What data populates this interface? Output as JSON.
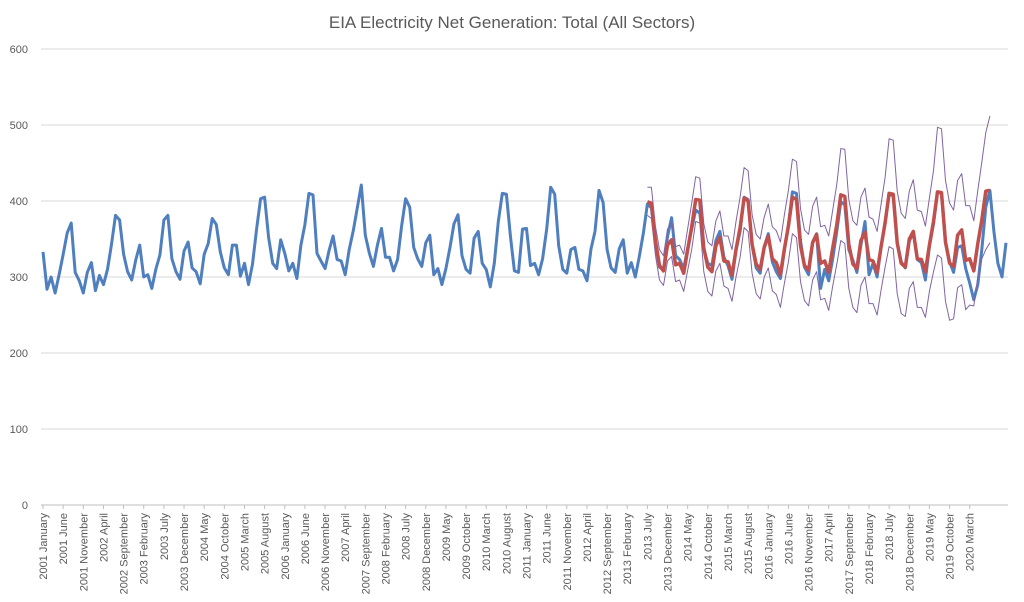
{
  "chart_data": {
    "type": "line",
    "title": "EIA Electricity Net Generation: Total (All Sectors)",
    "xlabel": "",
    "ylabel": "",
    "ylim": [
      0,
      600
    ],
    "yticks": [
      0,
      100,
      200,
      300,
      400,
      500,
      600
    ],
    "grid": true,
    "legend": "none",
    "colors": {
      "actual": "#4f7fbe",
      "forecast": "#c0504d",
      "bounds": "#8064a2",
      "grid": "#d9d9d9"
    },
    "x_start": "2001 January",
    "x_end": "2020 December",
    "x_tick_labels": [
      "2001 January",
      "2001 June",
      "2001 November",
      "2002 April",
      "2002 September",
      "2003 February",
      "2003 July",
      "2003 December",
      "2004 May",
      "2004 October",
      "2005 March",
      "2005 August",
      "2006 January",
      "2006 June",
      "2006 November",
      "2007 April",
      "2007 September",
      "2008 February",
      "2008 July",
      "2008 December",
      "2009 May",
      "2009 October",
      "2010 March",
      "2010 August",
      "2011 January",
      "2011 June",
      "2011 November",
      "2012 April",
      "2012 September",
      "2013 February",
      "2013 July",
      "2013 December",
      "2014 May",
      "2014 October",
      "2015 March",
      "2015 August",
      "2016 January",
      "2016 June",
      "2016 November",
      "2017 April",
      "2017 September",
      "2018 February",
      "2018 July",
      "2018 December",
      "2019 May",
      "2019 October",
      "2020 March"
    ],
    "series": [
      {
        "role": "actual",
        "start": "2001 January",
        "values": [
          333,
          284,
          300,
          279,
          303,
          330,
          358,
          371,
          306,
          295,
          279,
          306,
          319,
          282,
          302,
          290,
          310,
          343,
          381,
          375,
          330,
          307,
          296,
          322,
          342,
          300,
          303,
          285,
          310,
          329,
          375,
          381,
          324,
          307,
          297,
          334,
          346,
          312,
          307,
          291,
          330,
          344,
          377,
          369,
          333,
          312,
          303,
          342,
          342,
          301,
          318,
          290,
          317,
          363,
          403,
          405,
          352,
          318,
          311,
          349,
          331,
          308,
          318,
          298,
          342,
          369,
          410,
          408,
          331,
          321,
          311,
          335,
          354,
          323,
          321,
          303,
          336,
          361,
          391,
          421,
          355,
          331,
          314,
          342,
          364,
          326,
          326,
          308,
          323,
          367,
          403,
          392,
          339,
          324,
          314,
          345,
          355,
          303,
          311,
          290,
          311,
          339,
          370,
          382,
          328,
          310,
          305,
          351,
          360,
          318,
          310,
          287,
          318,
          373,
          410,
          409,
          354,
          308,
          306,
          363,
          364,
          315,
          318,
          303,
          324,
          363,
          418,
          409,
          341,
          310,
          305,
          336,
          339,
          310,
          308,
          295,
          337,
          360,
          414,
          398,
          336,
          312,
          306,
          337,
          349,
          305,
          319,
          300,
          327,
          358,
          396,
          391,
          345,
          313,
          309,
          353,
          378,
          328,
          323,
          311,
          338,
          363,
          388,
          384,
          337,
          318,
          315,
          348,
          360,
          326,
          315,
          297,
          335,
          360,
          405,
          402,
          342,
          312,
          305,
          340,
          357,
          320,
          307,
          298,
          335,
          368,
          412,
          410,
          348,
          313,
          303,
          346,
          357,
          285,
          310,
          295,
          324,
          360,
          399,
          395,
          336,
          322,
          306,
          342,
          373,
          303,
          318,
          300,
          340,
          373,
          409,
          407,
          345,
          320,
          312,
          347,
          359,
          323,
          319,
          296,
          340,
          370,
          412,
          410,
          345,
          320,
          306,
          339,
          341,
          311,
          292,
          270,
          290,
          336,
          392,
          414,
          360,
          318,
          300,
          345
        ]
      },
      {
        "role": "forecast",
        "start": "2013 July",
        "values": [
          399,
          397,
          348,
          315,
          308,
          342,
          349,
          316,
          318,
          305,
          336,
          366,
          402,
          401,
          338,
          313,
          307,
          341,
          352,
          321,
          320,
          302,
          336,
          365,
          404,
          400,
          343,
          317,
          310,
          339,
          354,
          324,
          319,
          303,
          337,
          367,
          405,
          402,
          341,
          315,
          309,
          345,
          356,
          318,
          321,
          306,
          338,
          369,
          408,
          406,
          343,
          317,
          311,
          348,
          359,
          323,
          321,
          306,
          340,
          371,
          410,
          409,
          345,
          318,
          313,
          350,
          360,
          324,
          323,
          307,
          342,
          373,
          412,
          411,
          346,
          318,
          314,
          355,
          362,
          322,
          324,
          308,
          344,
          375,
          413,
          414
        ]
      },
      {
        "role": "upper",
        "start": "2013 July",
        "values": [
          418,
          418,
          367,
          336,
          328,
          363,
          372,
          340,
          342,
          330,
          364,
          397,
          432,
          430,
          370,
          346,
          341,
          374,
          387,
          354,
          354,
          336,
          373,
          405,
          444,
          440,
          382,
          356,
          350,
          379,
          396,
          366,
          361,
          346,
          382,
          414,
          455,
          452,
          390,
          362,
          356,
          393,
          405,
          366,
          368,
          354,
          388,
          422,
          469,
          468,
          402,
          374,
          368,
          405,
          417,
          379,
          376,
          360,
          396,
          431,
          482,
          480,
          413,
          384,
          377,
          413,
          428,
          388,
          386,
          367,
          404,
          440,
          497,
          495,
          427,
          397,
          388,
          427,
          436,
          394,
          394,
          374,
          414,
          451,
          490,
          512
        ]
      },
      {
        "role": "lower",
        "start": "2013 July",
        "values": [
          381,
          377,
          329,
          296,
          289,
          321,
          327,
          294,
          296,
          281,
          309,
          336,
          373,
          371,
          307,
          281,
          275,
          308,
          318,
          288,
          285,
          268,
          300,
          326,
          365,
          360,
          305,
          278,
          271,
          300,
          312,
          282,
          277,
          260,
          292,
          320,
          357,
          352,
          294,
          269,
          262,
          296,
          307,
          270,
          272,
          256,
          288,
          317,
          348,
          344,
          285,
          260,
          253,
          289,
          300,
          265,
          265,
          250,
          283,
          313,
          340,
          337,
          278,
          252,
          248,
          285,
          294,
          260,
          260,
          247,
          281,
          307,
          329,
          325,
          268,
          243,
          245,
          286,
          290,
          257,
          263,
          262,
          300,
          324,
          336,
          345
        ]
      }
    ]
  }
}
